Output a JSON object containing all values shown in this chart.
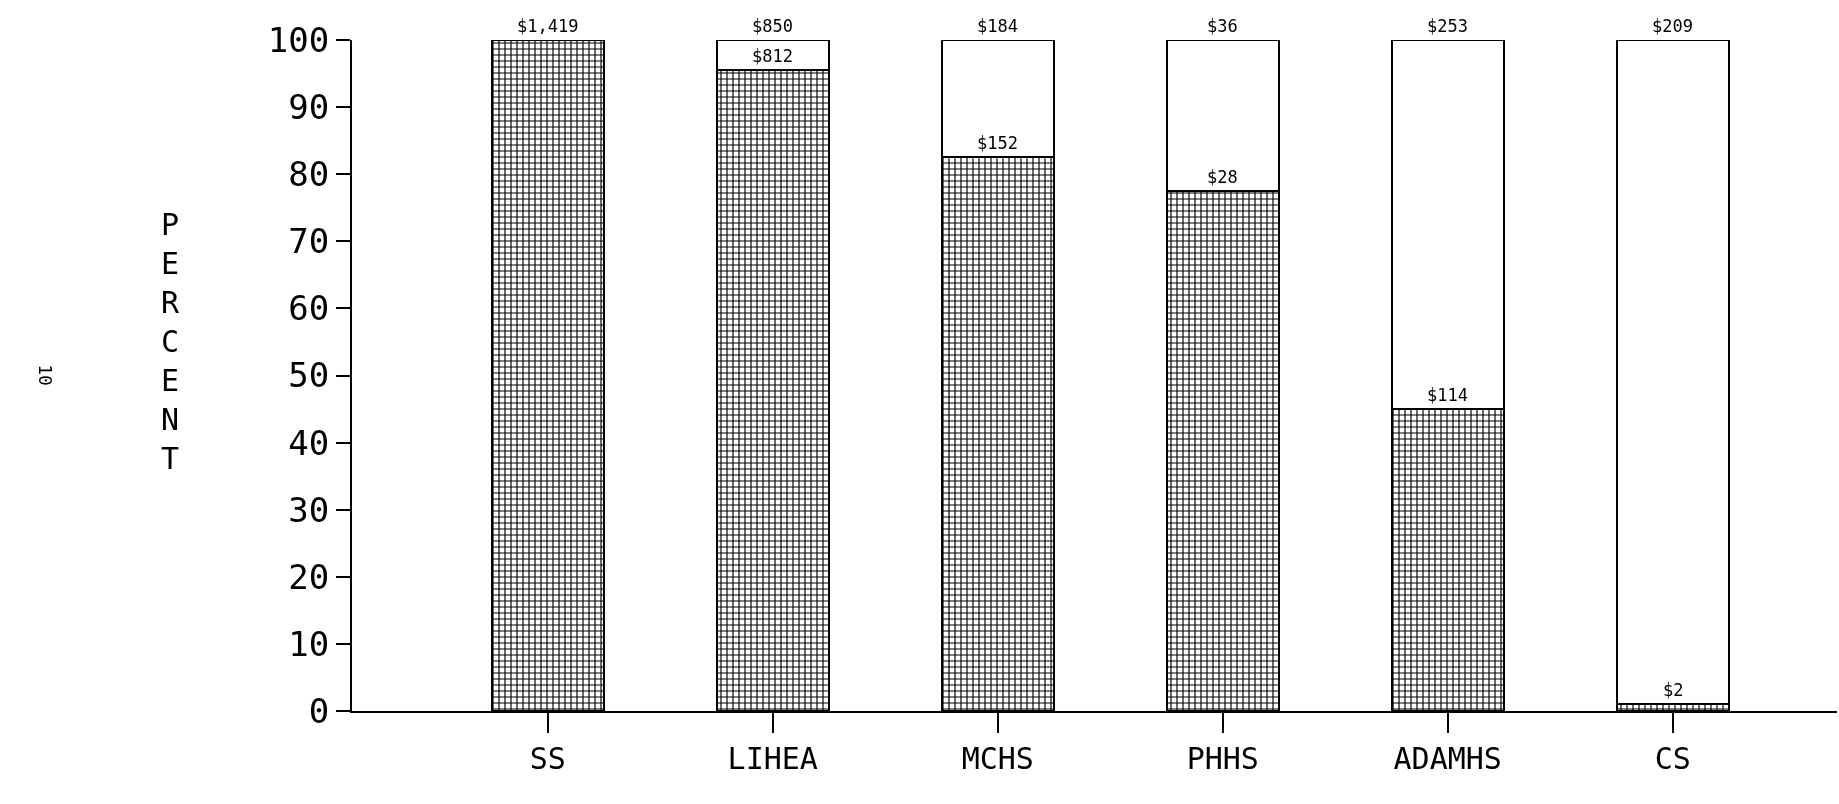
{
  "chart_data": {
    "type": "bar",
    "ylabel": "PERCENT",
    "categories": [
      "SS",
      "LIHEA",
      "MCHS",
      "PHHS",
      "ADAMHS",
      "CS"
    ],
    "stacked": true,
    "series": [
      {
        "color": "#000000",
        "values": [
          100,
          95.5,
          82.5,
          77.5,
          45,
          1
        ]
      },
      {
        "color": "#ffffff",
        "values": [
          null,
          4.5,
          17.5,
          22.5,
          55,
          99
        ]
      }
    ],
    "ylim": [
      0,
      100
    ],
    "yticks": [
      0,
      10,
      20,
      30,
      40,
      50,
      60,
      70,
      80,
      90,
      100
    ],
    "grid": false,
    "annotations": [
      {
        "text": "$1,419",
        "x": "SS",
        "y": 100
      },
      {
        "text": "$850",
        "x": "LIHEA",
        "y": 100
      },
      {
        "text": "$812",
        "x": "LIHEA",
        "y": 95.5
      },
      {
        "text": "$184",
        "x": "MCHS",
        "y": 100
      },
      {
        "text": "$152",
        "x": "MCHS",
        "y": 82.5
      },
      {
        "text": "$36",
        "x": "PHHS",
        "y": 100
      },
      {
        "text": "$28",
        "x": "PHHS",
        "y": 77.5
      },
      {
        "text": "$253",
        "x": "ADAMHS",
        "y": 100
      },
      {
        "text": "$114",
        "x": "ADAMHS",
        "y": 45
      },
      {
        "text": "$209",
        "x": "CS",
        "y": 100
      },
      {
        "text": "$2",
        "x": "CS",
        "y": 1
      },
      "10"
    ]
  }
}
